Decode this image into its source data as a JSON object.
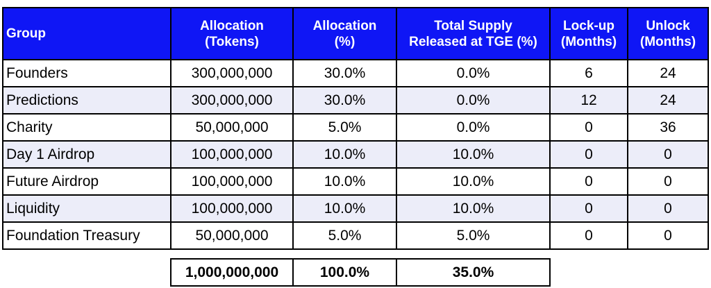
{
  "headers": [
    {
      "line1": "Group",
      "line2": ""
    },
    {
      "line1": "Allocation",
      "line2": "(Tokens)"
    },
    {
      "line1": "Allocation",
      "line2": "(%)"
    },
    {
      "line1": "Total Supply",
      "line2": "Released at TGE (%)"
    },
    {
      "line1": "Lock-up",
      "line2": "(Months)"
    },
    {
      "line1": "Unlock",
      "line2": "(Months)"
    }
  ],
  "rows": [
    {
      "group": "Founders",
      "tokens": "300,000,000",
      "pct": "30.0%",
      "tge": "0.0%",
      "lockup": "6",
      "unlock": "24"
    },
    {
      "group": "Predictions",
      "tokens": "300,000,000",
      "pct": "30.0%",
      "tge": "0.0%",
      "lockup": "12",
      "unlock": "24"
    },
    {
      "group": "Charity",
      "tokens": "50,000,000",
      "pct": "5.0%",
      "tge": "0.0%",
      "lockup": "0",
      "unlock": "36"
    },
    {
      "group": "Day 1 Airdrop",
      "tokens": "100,000,000",
      "pct": "10.0%",
      "tge": "10.0%",
      "lockup": "0",
      "unlock": "0"
    },
    {
      "group": "Future Airdrop",
      "tokens": "100,000,000",
      "pct": "10.0%",
      "tge": "10.0%",
      "lockup": "0",
      "unlock": "0"
    },
    {
      "group": "Liquidity",
      "tokens": "100,000,000",
      "pct": "10.0%",
      "tge": "10.0%",
      "lockup": "0",
      "unlock": "0"
    },
    {
      "group": "Foundation Treasury",
      "tokens": "50,000,000",
      "pct": "5.0%",
      "tge": "5.0%",
      "lockup": "0",
      "unlock": "0"
    }
  ],
  "totals": {
    "tokens": "1,000,000,000",
    "pct": "100.0%",
    "tge": "35.0%"
  },
  "colors": {
    "header_bg": "#0f16f5",
    "header_text": "#ffffff",
    "alt_row_bg": "#ecedf9",
    "border": "#000000"
  }
}
